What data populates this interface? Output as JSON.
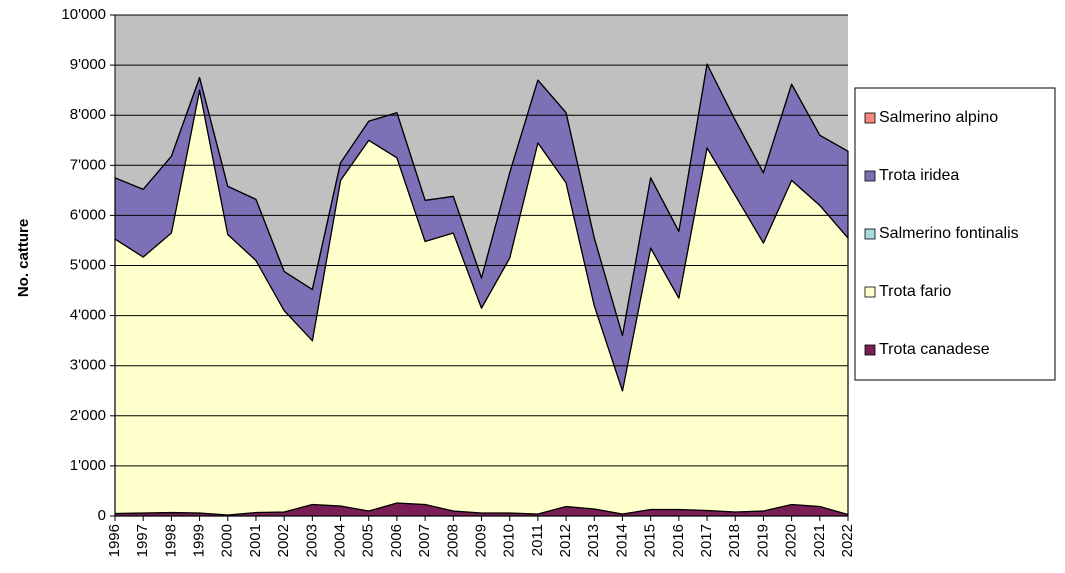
{
  "chart_data": {
    "type": "stacked_area",
    "y_label": "No. catture",
    "categories": [
      "1996",
      "1997",
      "1998",
      "1999",
      "2000",
      "2001",
      "2002",
      "2003",
      "2004",
      "2005",
      "2006",
      "2007",
      "2008",
      "2009",
      "2010",
      "2011",
      "2012",
      "2013",
      "2014",
      "2015",
      "2016",
      "2017",
      "2018",
      "2019",
      "2020",
      "2021",
      "2022"
    ],
    "series": [
      {
        "name": "Trota canadese",
        "color": "#7a1f55",
        "values": [
          50,
          60,
          70,
          60,
          20,
          70,
          80,
          230,
          200,
          100,
          260,
          230,
          100,
          60,
          60,
          40,
          190,
          140,
          40,
          130,
          130,
          110,
          80,
          100,
          230,
          190,
          30
        ]
      },
      {
        "name": "Trota fario",
        "color": "#ffffcc",
        "values": [
          5480,
          5110,
          5580,
          8440,
          5600,
          5030,
          4020,
          3270,
          6500,
          7400,
          6890,
          5250,
          5550,
          4090,
          5090,
          7410,
          6460,
          4060,
          2460,
          5220,
          4220,
          7240,
          6320,
          5350,
          6470,
          6010,
          5520
        ]
      },
      {
        "name": "Salmerino fontinalis",
        "color": "#a6dcdc",
        "values": [
          0,
          0,
          0,
          0,
          0,
          0,
          0,
          0,
          0,
          0,
          0,
          0,
          0,
          0,
          0,
          0,
          0,
          0,
          0,
          0,
          0,
          0,
          0,
          0,
          0,
          0,
          0
        ]
      },
      {
        "name": "Trota iridea",
        "color": "#7e70b6",
        "values": [
          1220,
          1350,
          1530,
          250,
          960,
          1220,
          780,
          1020,
          350,
          380,
          900,
          820,
          730,
          600,
          1700,
          1250,
          1400,
          1350,
          1100,
          1400,
          1330,
          1670,
          1500,
          1400,
          1920,
          1400,
          1730
        ]
      },
      {
        "name": "Salmerino alpino",
        "color": "#f4877f",
        "values": [
          0,
          0,
          0,
          0,
          0,
          0,
          0,
          0,
          0,
          0,
          0,
          0,
          0,
          0,
          0,
          0,
          0,
          0,
          0,
          0,
          0,
          0,
          0,
          0,
          0,
          0,
          0
        ]
      }
    ],
    "ylim": [
      0,
      10000
    ],
    "yticks": [
      0,
      {
        "value": 1000,
        "label": "1'000"
      },
      {
        "value": 2000,
        "label": "2'000"
      },
      {
        "value": 3000,
        "label": "3'000"
      },
      {
        "value": 4000,
        "label": "4'000"
      },
      {
        "value": 5000,
        "label": "5'000"
      },
      {
        "value": 6000,
        "label": "6'000"
      },
      {
        "value": 7000,
        "label": "7'000"
      },
      {
        "value": 8000,
        "label": "8'000"
      },
      {
        "value": 9000,
        "label": "9'000"
      },
      {
        "value": 10000,
        "label": "10'000"
      }
    ],
    "grid": true,
    "background": "#c0c0c0",
    "legend": "right"
  }
}
